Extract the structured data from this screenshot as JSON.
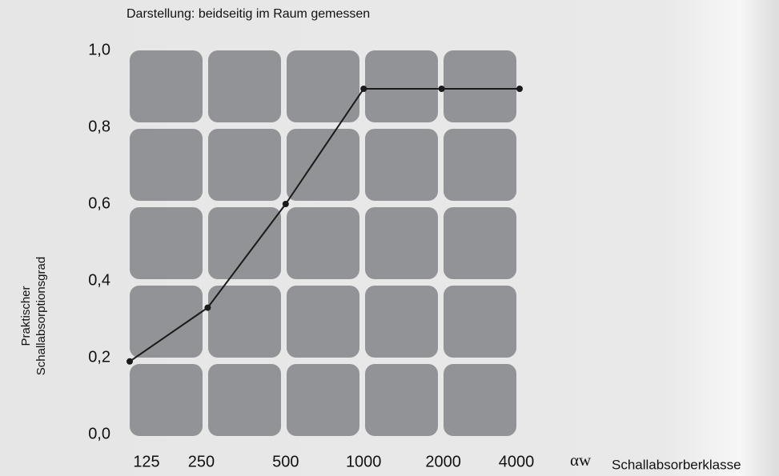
{
  "chart_data": {
    "type": "line",
    "subtitle": "Darstellung: beidseitig im Raum gemessen",
    "ylabel": [
      "Praktischer",
      "Schallabsorptionsgrad"
    ],
    "xlabel_symbol": "αw",
    "xlabel": "Schallabsorberklasse",
    "categories": [
      "125",
      "250",
      "500",
      "1000",
      "2000",
      "4000"
    ],
    "series": [
      {
        "name": null,
        "color": "#1a1a1a",
        "values": [
          0.19,
          0.33,
          0.6,
          0.9,
          0.9,
          0.9
        ]
      }
    ],
    "ylim": [
      0,
      1
    ],
    "yticks": [
      {
        "value": 0,
        "label": "0,0"
      },
      {
        "value": 0.2,
        "label": "0,2"
      },
      {
        "value": 0.4,
        "label": "0,4"
      },
      {
        "value": 0.6,
        "label": "0,6"
      },
      {
        "value": 0.8,
        "label": "0,8"
      },
      {
        "value": 1,
        "label": "1,0"
      }
    ]
  }
}
